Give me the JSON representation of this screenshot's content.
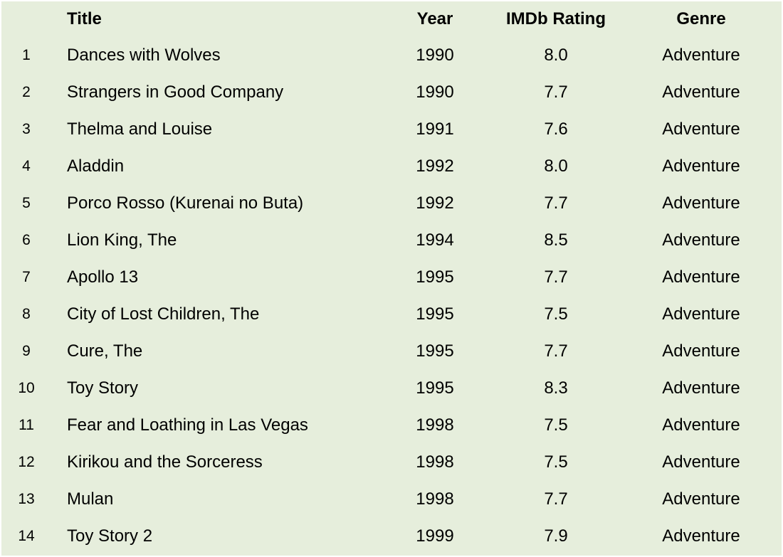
{
  "chart_data": {
    "type": "table",
    "columns": [
      "",
      "Title",
      "Year",
      "IMDb Rating",
      "Genre"
    ],
    "rows": [
      {
        "index": "1",
        "title": "Dances with Wolves",
        "year": "1990",
        "rating": "8.0",
        "genre": "Adventure"
      },
      {
        "index": "2",
        "title": "Strangers in Good Company",
        "year": "1990",
        "rating": "7.7",
        "genre": "Adventure"
      },
      {
        "index": "3",
        "title": "Thelma and Louise",
        "year": "1991",
        "rating": "7.6",
        "genre": "Adventure"
      },
      {
        "index": "4",
        "title": "Aladdin",
        "year": "1992",
        "rating": "8.0",
        "genre": "Adventure"
      },
      {
        "index": "5",
        "title": "Porco Rosso (Kurenai no Buta)",
        "year": "1992",
        "rating": "7.7",
        "genre": "Adventure"
      },
      {
        "index": "6",
        "title": "Lion King, The",
        "year": "1994",
        "rating": "8.5",
        "genre": "Adventure"
      },
      {
        "index": "7",
        "title": "Apollo 13",
        "year": "1995",
        "rating": "7.7",
        "genre": "Adventure"
      },
      {
        "index": "8",
        "title": "City of Lost Children, The",
        "year": "1995",
        "rating": "7.5",
        "genre": "Adventure"
      },
      {
        "index": "9",
        "title": "Cure, The",
        "year": "1995",
        "rating": "7.7",
        "genre": "Adventure"
      },
      {
        "index": "10",
        "title": "Toy Story",
        "year": "1995",
        "rating": "8.3",
        "genre": "Adventure"
      },
      {
        "index": "11",
        "title": "Fear and Loathing in Las Vegas",
        "year": "1998",
        "rating": "7.5",
        "genre": "Adventure"
      },
      {
        "index": "12",
        "title": "Kirikou and the Sorceress",
        "year": "1998",
        "rating": "7.5",
        "genre": "Adventure"
      },
      {
        "index": "13",
        "title": "Mulan",
        "year": "1998",
        "rating": "7.7",
        "genre": "Adventure"
      },
      {
        "index": "14",
        "title": "Toy Story 2",
        "year": "1999",
        "rating": "7.9",
        "genre": "Adventure"
      }
    ]
  },
  "colors": {
    "background": "#e6eedc",
    "text": "#000000"
  }
}
